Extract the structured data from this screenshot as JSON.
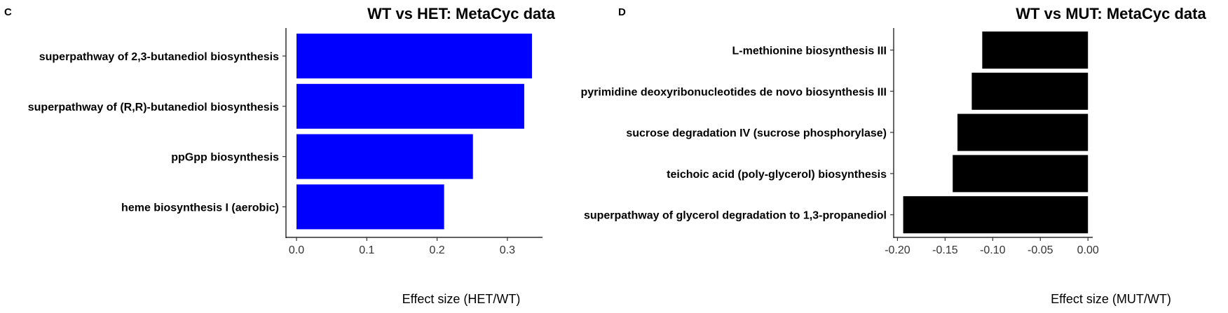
{
  "chart_data": [
    {
      "panel": "C",
      "type": "bar",
      "orientation": "horizontal",
      "title": "WT vs HET: MetaCyc data",
      "xlabel": "Effect size (HET/WT)",
      "ylabel": "",
      "categories": [
        "superpathway of 2,3-butanediol biosynthesis",
        "superpathway of (R,R)-butanediol biosynthesis",
        "ppGpp biosynthesis",
        "heme biosynthesis I (aerobic)"
      ],
      "values": [
        0.335,
        0.324,
        0.251,
        0.21
      ],
      "xlim": [
        -0.015,
        0.35
      ],
      "xticks": [
        "0.0",
        "0.1",
        "0.2",
        "0.3"
      ],
      "color": "#0000ff",
      "grid": false,
      "legend": "none"
    },
    {
      "panel": "D",
      "type": "bar",
      "orientation": "horizontal",
      "title": "WT vs MUT: MetaCyc data",
      "xlabel": "Effect size (MUT/WT)",
      "ylabel": "",
      "categories": [
        "L-methionine biosynthesis III",
        "pyrimidine deoxyribonucleotides de novo biosynthesis III",
        "sucrose degradation IV (sucrose phosphorylase)",
        "teichoic acid (poly-glycerol) biosynthesis",
        "superpathway of glycerol degradation to 1,3-propanediol"
      ],
      "values": [
        -0.111,
        -0.122,
        -0.137,
        -0.142,
        -0.194
      ],
      "xlim": [
        -0.204,
        0.005
      ],
      "xticks": [
        "-0.20",
        "-0.15",
        "-0.10",
        "-0.05",
        "0.00"
      ],
      "color": "#000000",
      "grid": false,
      "legend": "none"
    }
  ]
}
